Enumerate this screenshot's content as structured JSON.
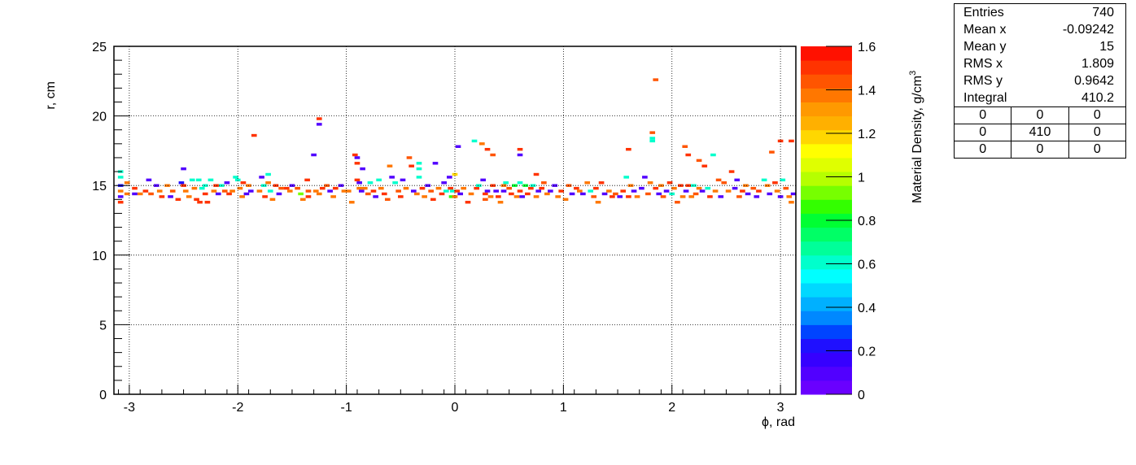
{
  "chart_data": {
    "type": "heatmap",
    "xlabel": "ϕ, rad",
    "ylabel": "r, cm",
    "zlabel": "Material Density, g/cm",
    "zlabel_sup": "3",
    "xlim": [
      -3.1416,
      3.1416
    ],
    "ylim": [
      0,
      25
    ],
    "zlim": [
      0,
      1.6
    ],
    "x_ticks": [
      "-3",
      "-2",
      "-1",
      "0",
      "1",
      "2",
      "3"
    ],
    "y_ticks": [
      "0",
      "5",
      "10",
      "15",
      "20",
      "25"
    ],
    "z_ticks": [
      "0",
      "0.2",
      "0.4",
      "0.6",
      "0.8",
      "1",
      "1.2",
      "1.4",
      "1.6"
    ],
    "grid": true,
    "palette": [
      "#6a00ff",
      "#5100ff",
      "#3600ff",
      "#1f10ff",
      "#0044ff",
      "#0088ff",
      "#00b0ff",
      "#00d8ff",
      "#00ffff",
      "#00ffcc",
      "#00ff99",
      "#00ff66",
      "#00ff33",
      "#33ff00",
      "#77ff00",
      "#b6ff00",
      "#dfff00",
      "#ffff00",
      "#ffd700",
      "#ffb000",
      "#ff9900",
      "#ff7700",
      "#ff5500",
      "#ff3300",
      "#ff1100"
    ],
    "cells": [
      [
        -3.08,
        16.0,
        0.6
      ],
      [
        -3.08,
        15.6,
        0.6
      ],
      [
        -3.08,
        15.0,
        0.25
      ],
      [
        -3.08,
        14.6,
        1.4
      ],
      [
        -3.08,
        14.2,
        0.1
      ],
      [
        -3.08,
        13.8,
        1.5
      ],
      [
        -3.02,
        15.2,
        1.4
      ],
      [
        -3.02,
        14.4,
        1.35
      ],
      [
        -2.95,
        14.8,
        1.5
      ],
      [
        -2.95,
        14.4,
        0.1
      ],
      [
        -2.9,
        14.4,
        1.4
      ],
      [
        -2.85,
        14.6,
        1.5
      ],
      [
        -2.82,
        15.4,
        0.1
      ],
      [
        -2.8,
        14.4,
        1.45
      ],
      [
        -2.75,
        15.0,
        0.1
      ],
      [
        -2.72,
        14.6,
        1.35
      ],
      [
        -2.7,
        14.2,
        1.5
      ],
      [
        -2.65,
        15.0,
        1.4
      ],
      [
        -2.62,
        14.2,
        0.1
      ],
      [
        -2.6,
        14.6,
        1.45
      ],
      [
        -2.55,
        14.0,
        1.5
      ],
      [
        -2.52,
        15.2,
        0.2
      ],
      [
        -2.5,
        16.2,
        0.1
      ],
      [
        -2.5,
        15.0,
        1.5
      ],
      [
        -2.48,
        14.6,
        1.4
      ],
      [
        -2.45,
        14.2,
        1.35
      ],
      [
        -2.42,
        15.4,
        0.6
      ],
      [
        -2.4,
        14.8,
        1.4
      ],
      [
        -2.38,
        14.0,
        1.5
      ],
      [
        -2.36,
        15.4,
        0.6
      ],
      [
        -2.35,
        13.8,
        1.5
      ],
      [
        -2.33,
        14.8,
        0.6
      ],
      [
        -2.3,
        15.0,
        0.6
      ],
      [
        -2.3,
        14.4,
        1.5
      ],
      [
        -2.28,
        13.8,
        1.5
      ],
      [
        -2.25,
        15.4,
        0.6
      ],
      [
        -2.22,
        14.6,
        1.4
      ],
      [
        -2.2,
        15.0,
        1.5
      ],
      [
        -2.18,
        14.4,
        0.1
      ],
      [
        -2.15,
        15.0,
        0.6
      ],
      [
        -2.12,
        14.6,
        1.45
      ],
      [
        -2.1,
        15.2,
        0.1
      ],
      [
        -2.08,
        14.4,
        1.5
      ],
      [
        -2.05,
        14.6,
        1.4
      ],
      [
        -2.02,
        15.6,
        0.6
      ],
      [
        -2.0,
        15.4,
        0.6
      ],
      [
        -1.98,
        14.8,
        1.4
      ],
      [
        -1.96,
        14.2,
        1.35
      ],
      [
        -1.95,
        15.2,
        1.5
      ],
      [
        -1.92,
        14.4,
        0.1
      ],
      [
        -1.9,
        15.0,
        1.4
      ],
      [
        -1.88,
        14.6,
        0.1
      ],
      [
        -1.85,
        18.6,
        1.5
      ],
      [
        -1.8,
        14.6,
        1.4
      ],
      [
        -1.78,
        15.6,
        0.1
      ],
      [
        -1.76,
        15.0,
        0.6
      ],
      [
        -1.75,
        14.2,
        1.5
      ],
      [
        -1.72,
        15.8,
        0.6
      ],
      [
        -1.72,
        15.2,
        1.4
      ],
      [
        -1.7,
        14.6,
        0.6
      ],
      [
        -1.68,
        14.0,
        1.4
      ],
      [
        -1.65,
        15.0,
        1.5
      ],
      [
        -1.62,
        14.4,
        0.1
      ],
      [
        -1.6,
        14.8,
        1.45
      ],
      [
        -1.55,
        14.8,
        1.5
      ],
      [
        -1.52,
        14.6,
        1.4
      ],
      [
        -1.5,
        15.0,
        0.1
      ],
      [
        -1.45,
        14.8,
        1.45
      ],
      [
        -1.42,
        14.4,
        0.9
      ],
      [
        -1.4,
        14.0,
        1.4
      ],
      [
        -1.36,
        15.4,
        1.5
      ],
      [
        -1.35,
        14.6,
        1.45
      ],
      [
        -1.35,
        14.2,
        1.5
      ],
      [
        -1.3,
        17.2,
        0.1
      ],
      [
        -1.28,
        14.6,
        1.4
      ],
      [
        -1.25,
        14.4,
        1.35
      ],
      [
        -1.25,
        19.4,
        0.1
      ],
      [
        -1.25,
        19.8,
        1.5
      ],
      [
        -1.22,
        14.8,
        1.5
      ],
      [
        -1.18,
        15.0,
        1.45
      ],
      [
        -1.15,
        14.6,
        0.1
      ],
      [
        -1.12,
        14.2,
        1.4
      ],
      [
        -1.1,
        14.8,
        1.5
      ],
      [
        -1.05,
        15.0,
        0.1
      ],
      [
        -1.02,
        14.6,
        1.4
      ],
      [
        -0.98,
        14.6,
        1.4
      ],
      [
        -0.95,
        13.8,
        1.35
      ],
      [
        -0.92,
        17.2,
        1.5
      ],
      [
        -0.9,
        17.0,
        0.1
      ],
      [
        -0.9,
        16.6,
        1.5
      ],
      [
        -0.9,
        15.4,
        1.5
      ],
      [
        -0.88,
        15.2,
        0.1
      ],
      [
        -0.88,
        14.8,
        1.4
      ],
      [
        -0.86,
        14.6,
        0.1
      ],
      [
        -0.85,
        16.2,
        0.1
      ],
      [
        -0.83,
        14.8,
        1.4
      ],
      [
        -0.8,
        14.4,
        1.45
      ],
      [
        -0.78,
        15.2,
        0.6
      ],
      [
        -0.75,
        14.6,
        1.5
      ],
      [
        -0.73,
        14.2,
        0.1
      ],
      [
        -0.7,
        15.4,
        0.6
      ],
      [
        -0.68,
        14.8,
        1.4
      ],
      [
        -0.65,
        14.4,
        1.5
      ],
      [
        -0.62,
        14.0,
        1.45
      ],
      [
        -0.6,
        16.4,
        1.4
      ],
      [
        -0.58,
        15.6,
        0.1
      ],
      [
        -0.55,
        15.2,
        0.6
      ],
      [
        -0.52,
        14.6,
        1.45
      ],
      [
        -0.5,
        14.2,
        1.5
      ],
      [
        -0.48,
        15.4,
        0.1
      ],
      [
        -0.45,
        14.8,
        1.4
      ],
      [
        -0.42,
        17.0,
        1.45
      ],
      [
        -0.4,
        16.4,
        1.5
      ],
      [
        -0.38,
        14.6,
        0.1
      ],
      [
        -0.35,
        14.4,
        1.4
      ],
      [
        -0.33,
        16.6,
        0.6
      ],
      [
        -0.33,
        16.2,
        0.6
      ],
      [
        -0.33,
        15.6,
        0.6
      ],
      [
        -0.3,
        14.8,
        1.5
      ],
      [
        -0.28,
        14.2,
        1.4
      ],
      [
        -0.25,
        15.0,
        0.1
      ],
      [
        -0.22,
        14.6,
        1.45
      ],
      [
        -0.2,
        14.0,
        1.5
      ],
      [
        -0.18,
        16.6,
        0.1
      ],
      [
        -0.15,
        14.8,
        1.4
      ],
      [
        -0.12,
        14.4,
        1.5
      ],
      [
        -0.1,
        15.2,
        0.1
      ],
      [
        -0.08,
        14.6,
        0.6
      ],
      [
        -0.05,
        15.6,
        0.1
      ],
      [
        -0.04,
        14.8,
        1.5
      ],
      [
        -0.03,
        14.2,
        0.85
      ],
      [
        -0.02,
        14.6,
        0.6
      ],
      [
        0.0,
        15.8,
        1.2
      ],
      [
        0.0,
        14.2,
        1.4
      ],
      [
        0.02,
        14.6,
        1.5
      ],
      [
        0.03,
        17.8,
        0.1
      ],
      [
        0.05,
        14.4,
        0.1
      ],
      [
        0.08,
        14.8,
        1.35
      ],
      [
        0.12,
        13.8,
        1.5
      ],
      [
        0.15,
        14.4,
        1.4
      ],
      [
        0.18,
        18.2,
        0.6
      ],
      [
        0.2,
        14.8,
        1.5
      ],
      [
        0.22,
        15.0,
        0.6
      ],
      [
        0.25,
        18.0,
        1.4
      ],
      [
        0.26,
        15.4,
        0.1
      ],
      [
        0.28,
        14.4,
        1.5
      ],
      [
        0.28,
        14.0,
        1.45
      ],
      [
        0.3,
        17.6,
        1.5
      ],
      [
        0.3,
        14.6,
        0.1
      ],
      [
        0.33,
        14.2,
        1.4
      ],
      [
        0.35,
        17.2,
        1.45
      ],
      [
        0.35,
        15.0,
        1.5
      ],
      [
        0.38,
        14.6,
        0.1
      ],
      [
        0.4,
        14.2,
        1.5
      ],
      [
        0.42,
        13.8,
        1.35
      ],
      [
        0.45,
        15.0,
        1.4
      ],
      [
        0.45,
        14.6,
        0.1
      ],
      [
        0.47,
        15.2,
        0.6
      ],
      [
        0.5,
        14.8,
        1.45
      ],
      [
        0.52,
        14.4,
        1.5
      ],
      [
        0.55,
        15.0,
        0.8
      ],
      [
        0.57,
        14.2,
        1.4
      ],
      [
        0.6,
        15.2,
        0.6
      ],
      [
        0.6,
        14.6,
        1.5
      ],
      [
        0.62,
        14.2,
        0.1
      ],
      [
        0.65,
        15.0,
        0.8
      ],
      [
        0.67,
        14.4,
        1.5
      ],
      [
        0.6,
        17.6,
        1.5
      ],
      [
        0.6,
        17.2,
        0.1
      ],
      [
        0.7,
        14.8,
        1.5
      ],
      [
        0.72,
        15.0,
        0.6
      ],
      [
        0.75,
        14.2,
        1.4
      ],
      [
        0.75,
        15.8,
        1.5
      ],
      [
        0.77,
        14.6,
        0.1
      ],
      [
        0.8,
        14.8,
        1.5
      ],
      [
        0.82,
        15.2,
        1.45
      ],
      [
        0.85,
        14.4,
        1.4
      ],
      [
        0.88,
        14.6,
        0.1
      ],
      [
        0.92,
        15.0,
        0.1
      ],
      [
        0.95,
        14.2,
        1.35
      ],
      [
        0.98,
        14.6,
        1.5
      ],
      [
        1.02,
        14.0,
        1.4
      ],
      [
        1.05,
        15.0,
        1.45
      ],
      [
        1.08,
        14.4,
        0.1
      ],
      [
        1.12,
        14.8,
        1.5
      ],
      [
        1.15,
        14.6,
        1.4
      ],
      [
        1.18,
        14.4,
        0.1
      ],
      [
        1.22,
        15.2,
        1.4
      ],
      [
        1.25,
        14.6,
        0.6
      ],
      [
        1.28,
        14.2,
        1.45
      ],
      [
        1.3,
        14.8,
        1.5
      ],
      [
        1.32,
        13.8,
        1.4
      ],
      [
        1.35,
        15.2,
        1.5
      ],
      [
        1.38,
        14.4,
        0.1
      ],
      [
        1.42,
        14.6,
        1.4
      ],
      [
        1.45,
        14.2,
        1.5
      ],
      [
        1.48,
        14.4,
        1.45
      ],
      [
        1.52,
        14.2,
        0.1
      ],
      [
        1.55,
        14.6,
        1.5
      ],
      [
        1.58,
        15.6,
        0.6
      ],
      [
        1.6,
        14.2,
        1.5
      ],
      [
        1.6,
        17.6,
        1.5
      ],
      [
        1.62,
        15.0,
        1.4
      ],
      [
        1.65,
        14.6,
        0.1
      ],
      [
        1.68,
        14.2,
        1.4
      ],
      [
        1.72,
        14.8,
        0.1
      ],
      [
        1.75,
        15.6,
        0.1
      ],
      [
        1.78,
        14.4,
        1.45
      ],
      [
        1.8,
        15.2,
        1.4
      ],
      [
        1.82,
        18.8,
        1.45
      ],
      [
        1.82,
        18.4,
        0.6
      ],
      [
        1.82,
        18.2,
        0.6
      ],
      [
        1.85,
        22.6,
        1.45
      ],
      [
        1.85,
        14.8,
        1.5
      ],
      [
        1.88,
        14.4,
        0.1
      ],
      [
        1.9,
        15.0,
        1.4
      ],
      [
        1.92,
        14.2,
        1.45
      ],
      [
        1.95,
        14.6,
        0.1
      ],
      [
        1.98,
        15.2,
        1.5
      ],
      [
        2.0,
        14.4,
        0.6
      ],
      [
        2.02,
        14.8,
        1.4
      ],
      [
        2.05,
        13.8,
        1.45
      ],
      [
        2.08,
        15.0,
        1.5
      ],
      [
        2.1,
        14.2,
        1.4
      ],
      [
        2.12,
        17.8,
        1.45
      ],
      [
        2.13,
        14.6,
        0.1
      ],
      [
        2.15,
        17.2,
        1.5
      ],
      [
        2.15,
        15.0,
        1.5
      ],
      [
        2.18,
        14.2,
        1.4
      ],
      [
        2.2,
        15.0,
        0.6
      ],
      [
        2.22,
        14.4,
        1.45
      ],
      [
        2.25,
        16.8,
        1.45
      ],
      [
        2.25,
        14.8,
        1.4
      ],
      [
        2.28,
        14.6,
        0.1
      ],
      [
        2.3,
        16.4,
        1.5
      ],
      [
        2.33,
        14.8,
        0.6
      ],
      [
        2.35,
        14.2,
        1.5
      ],
      [
        2.38,
        17.2,
        0.6
      ],
      [
        2.4,
        14.6,
        1.4
      ],
      [
        2.43,
        15.4,
        1.45
      ],
      [
        2.45,
        14.2,
        0.1
      ],
      [
        2.48,
        15.2,
        1.45
      ],
      [
        2.52,
        14.6,
        1.4
      ],
      [
        2.55,
        16.0,
        1.5
      ],
      [
        2.58,
        14.8,
        0.1
      ],
      [
        2.6,
        15.4,
        0.1
      ],
      [
        2.62,
        14.2,
        1.45
      ],
      [
        2.65,
        14.6,
        1.5
      ],
      [
        2.68,
        15.0,
        1.4
      ],
      [
        2.7,
        14.4,
        0.1
      ],
      [
        2.75,
        14.8,
        1.45
      ],
      [
        2.78,
        14.2,
        0.1
      ],
      [
        2.8,
        14.6,
        1.5
      ],
      [
        2.85,
        15.4,
        0.6
      ],
      [
        2.88,
        15.0,
        1.4
      ],
      [
        2.9,
        14.4,
        0.1
      ],
      [
        2.92,
        17.4,
        1.45
      ],
      [
        2.95,
        15.2,
        1.5
      ],
      [
        2.97,
        14.6,
        1.4
      ],
      [
        3.0,
        14.2,
        0.1
      ],
      [
        3.0,
        18.2,
        1.5
      ],
      [
        3.02,
        15.4,
        0.6
      ],
      [
        3.05,
        14.8,
        1.45
      ],
      [
        3.08,
        14.2,
        1.4
      ],
      [
        3.1,
        18.2,
        1.5
      ],
      [
        3.1,
        13.8,
        1.35
      ],
      [
        3.12,
        14.4,
        0.1
      ]
    ]
  },
  "stats": {
    "rows": [
      {
        "label": "Entries",
        "value": "740"
      },
      {
        "label": "Mean x",
        "value": "-0.09242"
      },
      {
        "label": "Mean y",
        "value": "15"
      },
      {
        "label": "RMS x",
        "value": "1.809"
      },
      {
        "label": "RMS y",
        "value": "0.9642"
      },
      {
        "label": "Integral",
        "value": "410.2"
      }
    ],
    "grid": [
      [
        "0",
        "0",
        "0"
      ],
      [
        "0",
        "410",
        "0"
      ],
      [
        "0",
        "0",
        "0"
      ]
    ]
  }
}
